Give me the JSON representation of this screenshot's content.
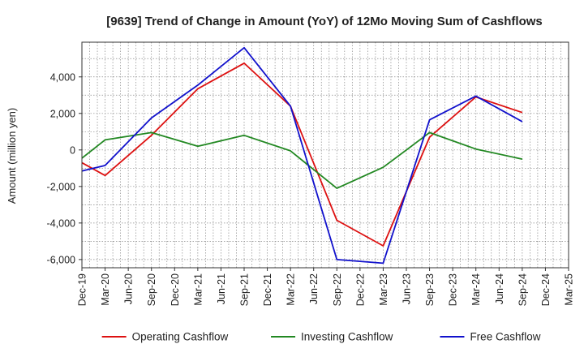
{
  "chart_data": {
    "type": "line",
    "title": "[9639]  Trend of Change in Amount (YoY) of 12Mo Moving Sum of Cashflows",
    "xlabel": "",
    "ylabel": "Amount (million yen)",
    "ylim": [
      -6450,
      5900
    ],
    "yticks": [
      -6000,
      -4000,
      -2000,
      0,
      2000,
      4000
    ],
    "ytick_labels": [
      "-6,000",
      "-4,000",
      "-2,000",
      "0",
      "2,000",
      "4,000"
    ],
    "categories": [
      "Dec-19",
      "Mar-20",
      "Jun-20",
      "Sep-20",
      "Dec-20",
      "Mar-21",
      "Jun-21",
      "Sep-21",
      "Dec-21",
      "Mar-22",
      "Jun-22",
      "Sep-22",
      "Dec-22",
      "Mar-23",
      "Jun-23",
      "Sep-23",
      "Dec-23",
      "Mar-24",
      "Jun-24",
      "Sep-24",
      "Dec-24",
      "Mar-25"
    ],
    "grid": true,
    "legend_position": "bottom",
    "series": [
      {
        "name": "Operating Cashflow",
        "color": "#dd1111",
        "values": [
          -700,
          -1400,
          null,
          800,
          null,
          3350,
          null,
          4750,
          null,
          2400,
          null,
          -3850,
          null,
          -5250,
          null,
          700,
          null,
          2900,
          null,
          2050,
          null,
          null
        ]
      },
      {
        "name": "Investing Cashflow",
        "color": "#228822",
        "values": [
          -450,
          550,
          null,
          950,
          null,
          200,
          null,
          800,
          null,
          -50,
          null,
          -2100,
          null,
          -950,
          null,
          950,
          null,
          50,
          null,
          -500,
          null,
          null
        ]
      },
      {
        "name": "Free Cashflow",
        "color": "#1111cc",
        "values": [
          -1150,
          -850,
          null,
          1750,
          null,
          3550,
          null,
          5600,
          null,
          2400,
          null,
          -6000,
          null,
          -6200,
          null,
          1650,
          null,
          2950,
          null,
          1550,
          null,
          null
        ]
      }
    ]
  }
}
